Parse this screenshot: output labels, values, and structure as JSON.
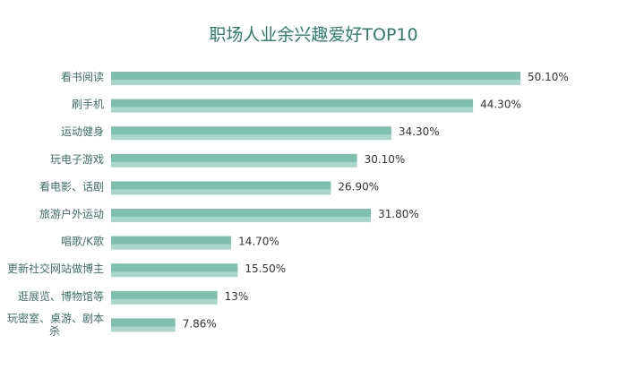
{
  "chart_data": {
    "type": "bar",
    "orientation": "horizontal",
    "title": "职场人业余兴趣爱好TOP10",
    "xlabel": "",
    "ylabel": "",
    "xlim": [
      0,
      50.1
    ],
    "grid": false,
    "legend": "none",
    "bar_color": "#7fbfae",
    "bar_shadow_color": "#a9d6ca",
    "categories": [
      "看书阅读",
      "刷手机",
      "运动健身",
      "玩电子游戏",
      "看电影、话剧",
      "旅游户外运动",
      "唱歌/K歌",
      "更新社交网站做博主",
      "逛展览、博物馆等",
      "玩密室、桌游、剧本杀"
    ],
    "values": [
      50.1,
      44.3,
      34.3,
      30.1,
      26.9,
      31.8,
      14.7,
      15.5,
      13,
      7.86
    ],
    "value_labels": [
      "50.10%",
      "44.30%",
      "34.30%",
      "30.10%",
      "26.90%",
      "31.80%",
      "14.70%",
      "15.50%",
      "13%",
      "7.86%"
    ]
  }
}
